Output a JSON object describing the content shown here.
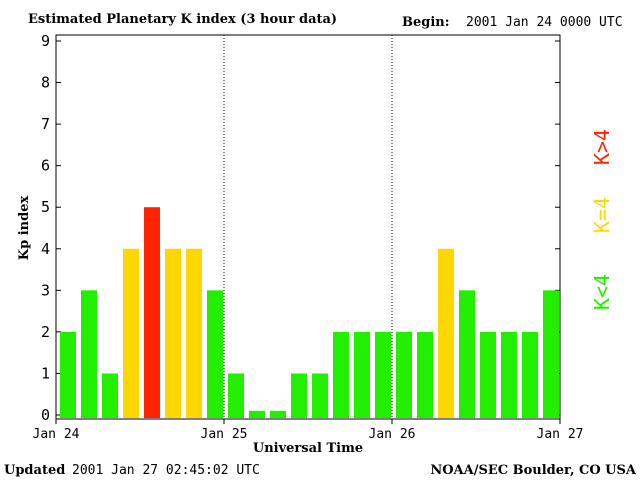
{
  "header": {
    "title": "Estimated Planetary K index (3 hour data)",
    "begin_label": "Begin:",
    "begin_value": "2001 Jan 24 0000 UTC"
  },
  "footer": {
    "updated_label": "Updated",
    "updated_value": "2001 Jan 27 02:45:02 UTC",
    "source": "NOAA/SEC Boulder, CO USA"
  },
  "legend": {
    "low": "K<4",
    "mid": "K=4",
    "high": "K>4"
  },
  "colors": {
    "low": "#22ee00",
    "mid": "#ffd700",
    "high": "#ff2200"
  },
  "chart_data": {
    "type": "bar",
    "ylabel": "Kp index",
    "xlabel": "Universal Time",
    "ylim": [
      0,
      9
    ],
    "yticks": [
      "0",
      "1",
      "2",
      "3",
      "4",
      "5",
      "6",
      "7",
      "8",
      "9"
    ],
    "xticks": [
      "Jan 24",
      "Jan 25",
      "Jan 26",
      "Jan 27"
    ],
    "values": [
      2,
      3,
      1,
      4,
      5,
      4,
      4,
      3,
      1,
      0.1,
      0.1,
      1,
      1,
      2,
      2,
      2,
      2,
      2,
      4,
      3,
      2,
      2,
      2,
      3
    ],
    "grid": "vertical dotted lines at day boundaries"
  }
}
